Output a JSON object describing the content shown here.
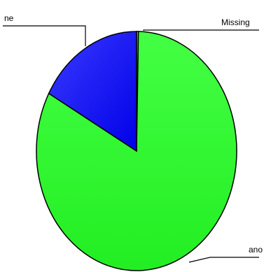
{
  "chart_data": {
    "type": "pie",
    "title": "",
    "slices": [
      {
        "label": "Missing",
        "value": 0.3,
        "color": "#33ff33"
      },
      {
        "label": "ano",
        "value": 82.7,
        "color": "#2eff2e"
      },
      {
        "label": "ne",
        "value": 17.0,
        "color": "#1f1fff"
      }
    ],
    "legend": "none"
  }
}
